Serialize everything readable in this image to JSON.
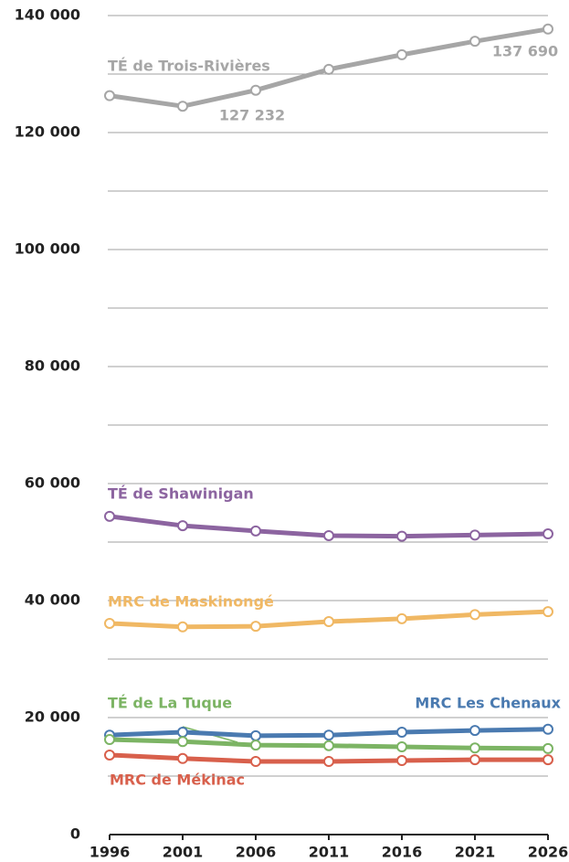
{
  "chart_data": {
    "type": "line",
    "x": [
      1996,
      2001,
      2006,
      2011,
      2016,
      2021,
      2026
    ],
    "xlim": [
      1996,
      2026
    ],
    "xticks": [
      1996,
      2001,
      2006,
      2011,
      2016,
      2021,
      2026
    ],
    "ylim": [
      0,
      140000
    ],
    "yticks": [
      0,
      {
        "value": 20000,
        "label": "20 000"
      },
      {
        "value": 40000,
        "label": "40 000"
      },
      {
        "value": 60000,
        "label": "60 000"
      },
      {
        "value": 80000,
        "label": "80 000"
      },
      {
        "value": 100000,
        "label": "100 000"
      },
      {
        "value": 120000,
        "label": "120 000"
      },
      {
        "value": 140000,
        "label": "140 000"
      }
    ],
    "minor_grid": [
      10000,
      30000,
      50000,
      70000,
      90000,
      110000,
      130000
    ],
    "grid": true,
    "series": [
      {
        "name": "TÉ de Trois-Rivières",
        "color": "#a6a6a6",
        "values": [
          126300,
          124500,
          127232,
          130800,
          133300,
          135600,
          137690
        ],
        "value_labels": [
          null,
          null,
          "127 232",
          null,
          null,
          null,
          "137 690"
        ]
      },
      {
        "name": "TÉ de Shawinigan",
        "color": "#8c64a0",
        "values": [
          54400,
          52800,
          51900,
          51100,
          51000,
          51200,
          51400
        ]
      },
      {
        "name": "MRC de Maskinongé",
        "color": "#f0b864",
        "values": [
          36100,
          35500,
          35600,
          36400,
          36900,
          37600,
          38100
        ]
      },
      {
        "name": "MRC Les Chenaux",
        "color": "#4a7ab0",
        "values": [
          17000,
          17500,
          16900,
          17000,
          17500,
          17800,
          18000
        ]
      },
      {
        "name": "TÉ de La Tuque",
        "color": "#7cb464",
        "values": [
          16250,
          15900,
          15300,
          15200,
          15000,
          14800,
          14700
        ]
      },
      {
        "name": "MRC de Mékinac",
        "color": "#d8604c",
        "values": [
          13600,
          13000,
          12500,
          12500,
          12650,
          12800,
          12800
        ]
      }
    ]
  }
}
